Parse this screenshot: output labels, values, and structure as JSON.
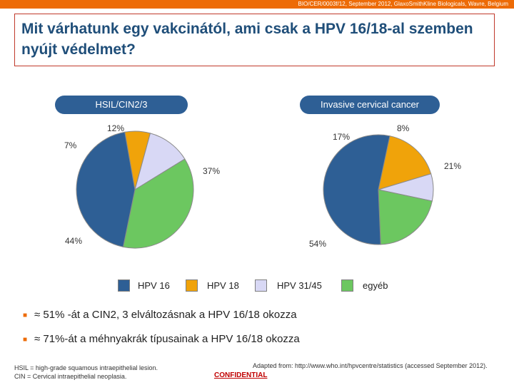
{
  "header": {
    "reference": "BIO/CER/0003f/12, September 2012, GlaxoSmithKline Biologicals, Wavre, Belgium",
    "title": "Mit várhatunk egy vakcinától, ami csak a HPV 16/18-al szemben nyújt védelmet?"
  },
  "chart_data": [
    {
      "type": "pie",
      "title": "HSIL/CIN2/3",
      "categories": [
        "HPV 16",
        "HPV 18",
        "HPV 31/45",
        "egyéb"
      ],
      "values": [
        44,
        7,
        12,
        37
      ],
      "labels": [
        "44%",
        "7%",
        "12%",
        "37%"
      ]
    },
    {
      "type": "pie",
      "title": "Invasive cervical cancer",
      "categories": [
        "HPV 16",
        "HPV 18",
        "HPV 31/45",
        "egyéb"
      ],
      "values": [
        54,
        17,
        8,
        21
      ],
      "labels": [
        "54%",
        "17%",
        "8%",
        "21%"
      ]
    }
  ],
  "legend": [
    {
      "label": "HPV 16",
      "color": "#2e5f95"
    },
    {
      "label": "HPV 18",
      "color": "#f0a30a"
    },
    {
      "label": "HPV 31/45",
      "color": "#d8d8f5"
    },
    {
      "label": "egyéb",
      "color": "#6cc760"
    }
  ],
  "bullets": [
    "≈ 51% -át a CIN2, 3 elváltozásnak a HPV 16/18 okozza",
    "≈ 71%-át a méhnyakrák típusainak a HPV 16/18 okozza"
  ],
  "footer": {
    "definition_1": "HSIL = high-grade squamous intraepithelial lesion.",
    "definition_2": "CIN = Cervical intraepithelial neoplasia.",
    "source": "Adapted from: http://www.who.int/hpvcentre/statistics (accessed September 2012).",
    "confidential": "CONFIDENTIAL"
  }
}
